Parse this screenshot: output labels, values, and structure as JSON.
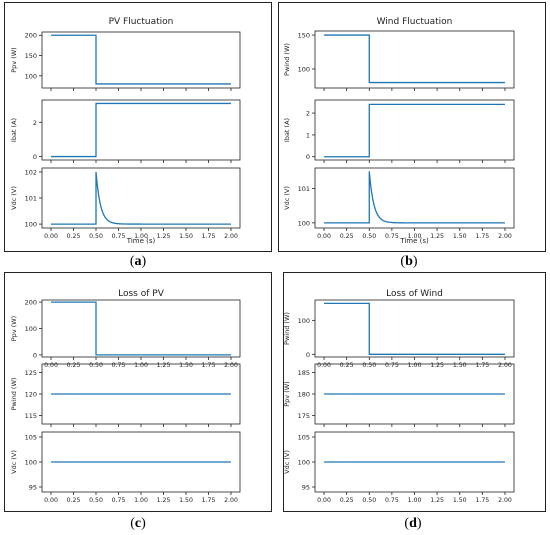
{
  "captions": [
    "a",
    "b",
    "c",
    "d"
  ],
  "chart_data": [
    {
      "type": "line",
      "title": "PV Fluctuation",
      "panel": "a",
      "xlabel": "Time (s)",
      "xticks": [
        "0.00",
        "0.25",
        "0.50",
        "0.75",
        "1.00",
        "1.25",
        "1.50",
        "1.75",
        "2.00"
      ],
      "xlim": [
        -0.1,
        2.1
      ],
      "subplots": [
        {
          "ylabel": "Ppv (W)",
          "ylim": [
            70,
            208
          ],
          "yticks": [
            100,
            150,
            200
          ],
          "ytick_labels": [
            "100",
            "150",
            "200"
          ],
          "series": [
            {
              "x": [
                0,
                0.5,
                0.5,
                2.0
              ],
              "y": [
                200,
                200,
                80,
                80
              ]
            }
          ]
        },
        {
          "ylabel": "Ibat (A)",
          "ylim": [
            -0.2,
            3.3
          ],
          "yticks": [
            0,
            2
          ],
          "ytick_labels": [
            "0",
            "2"
          ],
          "series": [
            {
              "x": [
                0,
                0.5,
                0.5,
                2.0
              ],
              "y": [
                0,
                0,
                3.1,
                3.1
              ]
            }
          ]
        },
        {
          "ylabel": "Vdc (V)",
          "ylim": [
            99.85,
            102.15
          ],
          "yticks": [
            100,
            101,
            102
          ],
          "ytick_labels": [
            "100",
            "101",
            "102"
          ],
          "series": [
            {
              "kind": "step_decay",
              "base": 100,
              "t0": 0.5,
              "peak": 102,
              "tau": 0.05,
              "tmax": 2.0
            }
          ]
        }
      ]
    },
    {
      "type": "line",
      "title": "Wind Fluctuation",
      "panel": "b",
      "xlabel": "Time (s)",
      "xticks": [
        "0.00",
        "0.25",
        "0.50",
        "0.75",
        "1.00",
        "1.25",
        "1.50",
        "1.75",
        "2.00"
      ],
      "xlim": [
        -0.1,
        2.1
      ],
      "subplots": [
        {
          "ylabel": "Pwind (W)",
          "ylim": [
            72,
            156
          ],
          "yticks": [
            100,
            150
          ],
          "ytick_labels": [
            "100",
            "150"
          ],
          "series": [
            {
              "x": [
                0,
                0.5,
                0.5,
                2.0
              ],
              "y": [
                150,
                150,
                80,
                80
              ]
            }
          ]
        },
        {
          "ylabel": "Ibat (A)",
          "ylim": [
            -0.15,
            2.6
          ],
          "yticks": [
            0,
            1,
            2
          ],
          "ytick_labels": [
            "0",
            "1",
            "2"
          ],
          "series": [
            {
              "x": [
                0,
                0.5,
                0.5,
                2.0
              ],
              "y": [
                0,
                0,
                2.4,
                2.4
              ]
            }
          ]
        },
        {
          "ylabel": "Vdc (V)",
          "ylim": [
            99.85,
            101.6
          ],
          "yticks": [
            100,
            101
          ],
          "ytick_labels": [
            "100",
            "101"
          ],
          "series": [
            {
              "kind": "step_decay",
              "base": 100,
              "t0": 0.5,
              "peak": 101.5,
              "tau": 0.05,
              "tmax": 2.0
            }
          ]
        }
      ]
    },
    {
      "type": "line",
      "title": "Loss of PV",
      "panel": "c",
      "xlabel": "",
      "xticks": [
        "0.00",
        "0.25",
        "0.50",
        "0.75",
        "1.00",
        "1.25",
        "1.50",
        "1.75",
        "2.00"
      ],
      "xlim": [
        -0.1,
        2.1
      ],
      "subplots": [
        {
          "ylabel": "Ppv (W)",
          "ylim": [
            -8,
            208
          ],
          "yticks": [
            0,
            100,
            200
          ],
          "ytick_labels": [
            "0",
            "100",
            "200"
          ],
          "series": [
            {
              "x": [
                0,
                0.5,
                0.5,
                2.0
              ],
              "y": [
                200,
                200,
                0,
                0
              ]
            }
          ]
        },
        {
          "ylabel": "Pwind (W)",
          "ylim": [
            113,
            127
          ],
          "yticks": [
            115,
            120,
            125
          ],
          "ytick_labels": [
            "115",
            "120",
            "125"
          ],
          "series": [
            {
              "x": [
                0,
                2.0
              ],
              "y": [
                120,
                120
              ]
            }
          ]
        },
        {
          "ylabel": "Vdc (V)",
          "ylim": [
            94,
            106
          ],
          "yticks": [
            95,
            100,
            105
          ],
          "ytick_labels": [
            "95",
            "100",
            "105"
          ],
          "series": [
            {
              "x": [
                0,
                2.0
              ],
              "y": [
                100,
                100
              ]
            }
          ]
        }
      ]
    },
    {
      "type": "line",
      "title": "Loss of Wind",
      "panel": "d",
      "xlabel": "",
      "xticks": [
        "0.00",
        "0.25",
        "0.50",
        "0.75",
        "1.00",
        "1.25",
        "1.50",
        "1.75",
        "2.00"
      ],
      "xlim": [
        -0.1,
        2.1
      ],
      "subplots": [
        {
          "ylabel": "Pwind (W)",
          "ylim": [
            -8,
            160
          ],
          "yticks": [
            0,
            100
          ],
          "ytick_labels": [
            "0",
            "100"
          ],
          "series": [
            {
              "x": [
                0,
                0.5,
                0.5,
                2.0
              ],
              "y": [
                150,
                150,
                0,
                0
              ]
            }
          ]
        },
        {
          "ylabel": "Ppv (W)",
          "ylim": [
            173,
            187
          ],
          "yticks": [
            175,
            180,
            185
          ],
          "ytick_labels": [
            "175",
            "180",
            "185"
          ],
          "series": [
            {
              "x": [
                0,
                2.0
              ],
              "y": [
                180,
                180
              ]
            }
          ]
        },
        {
          "ylabel": "Vdc (V)",
          "ylim": [
            94,
            106
          ],
          "yticks": [
            95,
            100,
            105
          ],
          "ytick_labels": [
            "95",
            "100",
            "105"
          ],
          "series": [
            {
              "x": [
                0,
                2.0
              ],
              "y": [
                100,
                100
              ]
            }
          ]
        }
      ]
    }
  ],
  "colors": {
    "line": "#1f77b4",
    "axis": "#222222"
  }
}
